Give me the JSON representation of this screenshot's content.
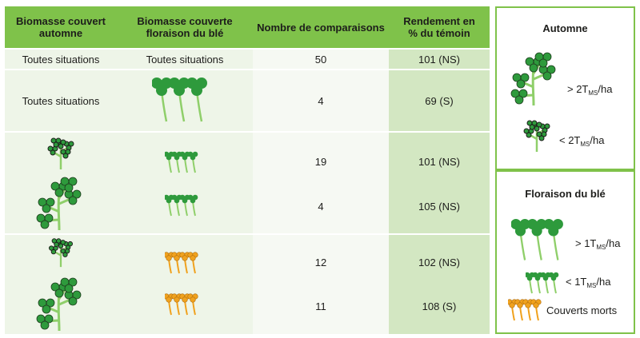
{
  "headers": {
    "col1": "Biomasse couvert automne",
    "col2": "Biomasse couverte floraison du blé",
    "col3": "Nombre de comparaisons",
    "col4": "Rendement en % du témoin"
  },
  "rows": {
    "r1": {
      "col1": "Toutes situations",
      "col2": "Toutes situations",
      "comparisons": "50",
      "yield": "101 (NS)"
    },
    "r2": {
      "col1": "Toutes situations",
      "comparisons": "4",
      "yield": "69 (S)"
    },
    "r3": {
      "comparisons": "19",
      "yield": "101 (NS)"
    },
    "r4": {
      "comparisons": "4",
      "yield": "105 (NS)"
    },
    "r5": {
      "comparisons": "12",
      "yield": "102 (NS)"
    },
    "r6": {
      "comparisons": "11",
      "yield": "108 (S)"
    }
  },
  "legend_autumn": {
    "title": "Automne",
    "high": {
      "prefix": "> 2T",
      "sub": "MS",
      "suffix": "/ha"
    },
    "low": {
      "prefix": "< 2T",
      "sub": "MS",
      "suffix": "/ha"
    }
  },
  "legend_flowering": {
    "title": "Floraison du blé",
    "high": {
      "prefix": "> 1T",
      "sub": "MS",
      "suffix": "/ha"
    },
    "low": {
      "prefix": "< 1T",
      "sub": "MS",
      "suffix": "/ha"
    },
    "dead": "Couverts morts"
  },
  "icons": {
    "big_clover_plant": "clover-plant-large-icon",
    "small_clover_plant": "clover-plant-small-icon",
    "green_row_large": "green-cover-large-icon",
    "green_row_small": "green-cover-small-icon",
    "dead_row": "dead-cover-icon"
  },
  "colors": {
    "header_green": "#7fc24a",
    "clover_green": "#2e9a3c",
    "leaf_light": "#8fcf6a",
    "dead_orange": "#f0a21e"
  }
}
